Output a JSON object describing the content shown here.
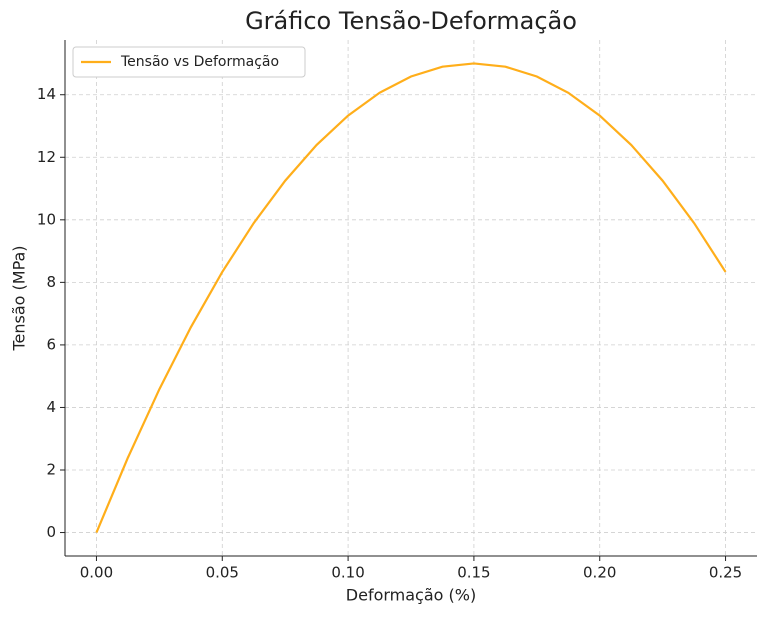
{
  "chart_data": {
    "type": "line",
    "title": "Gráfico Tensão-Deformação",
    "x_label": "Deformação (%)",
    "y_label": "Tensão (MPa)",
    "x": [
      0,
      0.0125,
      0.025,
      0.0375,
      0.05,
      0.0625,
      0.075,
      0.0875,
      0.1,
      0.1125,
      0.125,
      0.1375,
      0.15,
      0.1625,
      0.175,
      0.1875,
      0.2,
      0.2125,
      0.225,
      0.2375,
      0.25
    ],
    "series": [
      {
        "name": "Tensão vs Deformação",
        "color": "#ffae1a",
        "values": [
          0,
          2.396,
          4.583,
          6.563,
          8.333,
          9.896,
          11.25,
          12.396,
          13.333,
          14.063,
          14.583,
          14.896,
          15,
          14.896,
          14.583,
          14.063,
          13.333,
          12.396,
          11.25,
          9.896,
          8.333
        ]
      }
    ],
    "xlim": [
      -0.0125,
      0.2625
    ],
    "ylim": [
      -0.75,
      15.75
    ],
    "xticks": [
      {
        "value": 0,
        "label": "0.00"
      },
      0.05,
      {
        "value": 0.1,
        "label": "0.10"
      },
      0.15,
      {
        "value": 0.2,
        "label": "0.20"
      },
      0.25
    ],
    "yticks": [
      0,
      2,
      4,
      6,
      8,
      10,
      12,
      14
    ],
    "grid": true,
    "legend": "upper-left"
  }
}
